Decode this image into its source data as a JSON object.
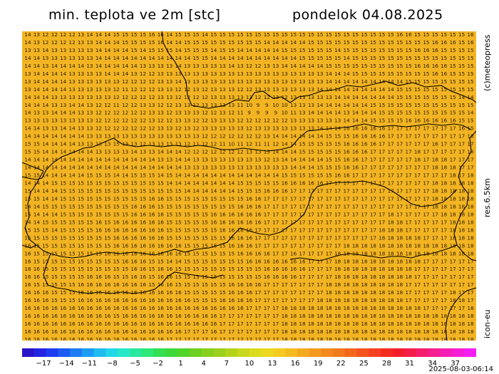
{
  "header": {
    "title": "min. teplota ve 2m [stc]",
    "date_label": "pondelok 04.08.2025"
  },
  "side_labels": {
    "credit": "(c)meteopress",
    "resolution": "res.6.5km",
    "model": "icon-eu"
  },
  "timestamp": "2025-08-03-06:14",
  "map": {
    "background_color": "#f2b422",
    "contour_color": "#000000",
    "value_color": "#2a1a00",
    "rows": [
      "14 13 12 12 12 12 13 14 14 14 15 15 15 15 16 16 14 15 15 15 14 15 15 15 15 15 15 15 15 15 15 15 15 15 15 15 15 15 15 15 15 15 16 16 15 15 15 15 15 15 16",
      "14 13 12 12 12 12 13 13 14 14 14 15 15 15 15 16 14 14 15 15 15 15 15 15 15 15 15 14 14 14 14 14 15 15 15 15 15 15 15 15 15 15 15 15 15 15 16 16 16 15 16",
      "13 13 14 13 13 13 13 13 14 14 14 14 15 14 15 15 15 14 15 15 15 14 15 15 14 14 14 14 14 15 15 15 15 15 15 14 15 15 15 15 15 15 15 15 16 16 16 15 15 15 15",
      "14 14 13 13 13 13 13 13 14 14 14 14 14 14 14 14 14 14 14 15 15 14 14 14 14 14 14 14 14 14 14 15 15 15 15 15 14 15 15 15 15 15 15 15 15 15 15 15 15 15 15",
      "14 14 13 14 14 14 14 13 14 14 14 14 14 13 13 13 13 14 13 13 13 13 13 14 13 12 12 13 13 14 14 14 14 14 15 15 15 15 15 15 15 15 15 15 16 16 16 16 15 15 15",
      "13 14 14 14 14 13 13 13 13 14 14 14 13 12 12 13 13 13 13 13 13 13 13 13 13 13 13 13 13 13 13 13 13 13 14 14 14 15 15 15 15 15 15 15 15 15 16 16 15 15 15",
      "13 14 14 14 14 13 13 13 13 13 13 12 12 12 12 13 13 14 13 13 13 13 13 13 13 13 13 13 13 13 13 13 13 13 14 14 14 14 14 14 14 14 14 15 15 15 15 15 15 15 15",
      "13 14 14 14 14 13 13 13 13 13 12 11 12 12 12 13 13 12 12 13 12 13 13 13 12 12 13 13 13 13 13 13 13 14 14 14 14 14 14 14 14 14 15 15 15 15 15 15 15 15 15",
      "14 14 14 13 13 13 13 13 13 13 12 12 12 12 12 13 13 12 12 12 12 13 13 13 13 13 12 12 13 12 13 13 13 13 13 14 14 14 14 14 14 14 15 15 15 15 15 15 15 14 14",
      "14 14 14 13 13 14 14 13 12 12 11 12 12 13 13 12 12 13 13 12 13 13 13 13 11 10 9 9 10 10 13 13 13 14 14 14 14 14 14 15 15 15 15 15 15 15 15 15 15 15 15",
      "14 13 13 14 14 14 13 13 12 12 12 12 12 12 13 13 12 13 13 13 12 12 13 12 11 9 9 9 9 10 11 13 14 14 14 14 13 14 14 14 15 15 15 15 15 15 15 15 15 15 14",
      "13 13 13 13 13 13 13 13 12 12 12 12 12 12 13 12 12 13 13 12 12 13 13 13 12 12 12 12 12 12 13 13 13 13 13 13 14 14 14 15 15 15 15 16 16 16 16 16 16 15 15",
      "14 14 13 13 14 14 13 13 12 12 12 12 12 12 12 13 13 12 13 12 13 13 13 13 13 12 13 13 13 13 13 13 13 14 14 14 16 16 16 16 16 17 17 17 17 17 17 17 17 16 15",
      "14 14 14 14 14 14 14 13 13 13 13 13 13 13 13 13 13 13 13 13 12 12 12 12 12 12 12 13 14 14 14 14 14 14 15 15 15 16 16 16 16 17 17 17 17 17 17 17 17 17 16",
      "15 15 14 14 14 14 13 13 13 13 15 13 13 12 13 13 13 13 12 11 12 12 11 10 11 12 11 11 12 14 14 15 15 15 15 15 16 16 16 16 17 17 17 17 17 17 16 17 17 17 17",
      "15 15 14 14 14 14 14 14 13 13 13 13 14 13 13 14 14 14 12 12 12 12 12 12 12 13 13 13 14 14 14 15 15 15 15 15 16 16 16 17 17 17 17 17 18 17 17 17 17 17 18",
      "14 14 14 14 14 14 14 14 14 14 14 14 14 14 14 13 13 14 14 13 13 13 13 13 13 13 13 12 13 14 14 14 14 14 15 15 16 16 17 17 17 17 17 17 18 17 18 18 17 17 17",
      "14 14 14 14 14 14 14 14 14 14 14 14 14 14 14 14 14 14 13 13 13 13 13 13 13 13 13 13 13 13 14 14 14 15 15 15 16 16 17 17 17 17 17 17 17 17 18 18 18 17 17",
      "15 15 14 14 14 14 14 15 15 15 14 14 15 15 15 14 15 14 14 14 14 14 14 14 14 14 14 14 14 15 15 15 15 15 15 16 16 17 17 17 17 17 17 17 17 17 17 17 18 17 18",
      "14 14 14 15 15 15 15 15 15 15 15 15 15 15 15 15 14 14 14 14 14 14 14 14 15 15 15 15 15 16 16 16 16 16 17 17 17 17 17 17 17 17 17 17 17 17 18 18 18 18 18",
      "15 14 14 14 15 15 15 15 15 15 15 15 15 15 15 15 15 15 14 14 14 14 14 14 15 15 15 16 16 16 17 17 17 17 17 17 17 17 17 17 17 17 17 17 17 17 18 18 18 18 18",
      "15 15 14 14 15 15 15 15 15 15 15 15 15 15 16 16 15 15 15 15 15 15 15 15 15 16 16 17 17 17 17 17 17 17 17 17 17 17 17 17 17 17 17 17 17 17 18 18 18 18 18",
      "14 14 15 15 15 15 15 15 15 15 15 15 16 16 16 15 15 15 15 15 15 15 15 15 16 16 16 17 17 17 17 17 17 17 17 17 17 17 17 17 17 17 17 17 17 17 18 18 18 18 18",
      "15 14 14 14 15 15 15 15 15 15 15 15 16 16 16 16 15 15 15 15 15 16 16 16 16 16 16 17 17 17 17 17 17 17 17 17 17 17 17 17 17 18 17 17 17 17 17 18 18 18 18",
      "14 14 15 15 15 15 15 15 16 15 16 16 16 16 16 16 15 15 15 15 15 16 16 16 16 16 16 17 17 17 17 17 17 17 17 17 17 17 17 17 17 18 18 17 17 17 17 17 18 18 18",
      "15 15 15 14 15 15 15 15 16 16 16 16 16 16 16 16 15 15 15 15 15 15 16 16 16 16 17 17 17 17 17 17 17 17 17 17 17 17 17 17 18 18 18 17 17 17 17 17 18 18 18",
      "15 15 15 15 15 15 15 15 15 15 16 16 16 16 16 16 15 15 15 15 15 15 15 16 16 16 17 17 17 17 17 17 17 17 17 17 17 17 17 17 18 18 18 18 18 17 17 17 18 18 18",
      "16 15 15 15 15 15 15 15 15 15 16 16 16 16 16 16 16 16 15 15 15 15 15 16 16 16 17 17 17 17 17 17 17 17 17 17 18 18 18 18 18 18 18 18 18 18 18 18 18 18 18",
      "16 15 15 15 15 15 15 15 15 16 16 16 16 16 16 16 16 16 15 15 15 15 15 15 16 16 16 16 17 17 16 17 17 17 17 18 18 18 18 18 18 18 18 18 18 18 18 18 18 18 18",
      "16 15 15 15 15 15 15 15 15 15 15 16 16 16 15 15 14 14 15 15 15 15 15 15 15 16 16 16 16 16 16 16 17 17 17 18 18 18 18 18 18 18 18 18 18 17 17 17 17 17 17",
      "16 16 15 15 15 15 15 15 15 15 15 15 16 16 15 16 16 15 15 15 15 15 15 15 15 15 15 16 16 16 16 16 17 17 17 18 18 18 18 18 18 18 18 18 17 17 17 17 17 17 17",
      "16 16 15 15 15 15 15 16 16 16 15 15 16 16 15 16 16 15 15 15 15 15 15 15 15 15 15 16 16 16 16 17 17 17 17 18 18 18 18 18 18 18 18 18 17 17 17 17 17 17 17",
      "16 15 15 15 15 15 16 16 16 16 16 16 16 16 15 16 16 15 15 15 15 15 15 16 16 16 16 17 17 17 17 17 17 17 18 18 18 18 18 18 18 18 18 17 17 17 17 17 17 17 17",
      "16 16 16 15 15 15 16 16 16 16 16 16 16 16 16 16 16 16 15 15 15 15 15 16 16 16 17 17 17 17 17 17 17 17 18 18 18 18 18 18 18 18 18 17 17 17 17 17 18 17 17",
      "16 16 16 15 15 15 16 16 16 16 16 16 16 16 16 16 16 16 16 15 15 15 16 16 16 16 17 17 17 17 17 17 17 18 18 18 18 18 18 18 18 18 18 17 17 17 17 17 18 18 17",
      "16 16 16 16 16 16 16 16 16 16 16 16 16 16 16 16 16 16 16 16 16 16 16 16 16 17 17 17 17 18 18 18 18 18 18 18 18 18 18 18 18 18 18 18 18 17 17 17 17 17 18",
      "16 16 16 16 16 16 16 16 16 16 15 16 16 16 16 16 16 16 16 16 16 16 17 17 17 17 17 17 17 18 18 18 18 18 18 18 18 18 18 18 18 18 18 18 18 18 18 18 18 18 18",
      "16 16 16 16 16 16 16 16 16 16 16 16 16 16 16 16 16 16 16 16 16 16 17 17 17 17 17 17 17 18 18 18 18 18 18 18 18 18 18 18 18 18 18 18 18 18 18 18 18 18 18",
      "16 16 16 16 16 16 16 16 16 16 16 16 16 16 16 16 16 16 17 17 17 16 17 17 17 17 17 17 17 18 18 18 18 18 18 18 18 18 18 18 18 18 18 18 18 18 18 18 18 18 18",
      "16 16 16 16 16 16 16 16 16 16 16 16 16 16 16 16 17 17 17 17 17 17 17 17 17 17 17 17 17 18 18 18 18 18 18 18 18 18 18 18 18 18 18 18 18 18 18 18 18 18 18"
    ]
  },
  "legend": {
    "ticks": [
      "−17",
      "−14",
      "−11",
      "−8",
      "−5",
      "−2",
      "1",
      "4",
      "7",
      "10",
      "13",
      "16",
      "19",
      "22",
      "25",
      "28",
      "31",
      "34",
      "37"
    ],
    "colors": [
      "#2a14c8",
      "#2424e0",
      "#1e3cf0",
      "#1a5cf4",
      "#1c7cf4",
      "#1c9cf4",
      "#20bcf0",
      "#22d8e8",
      "#26e8c8",
      "#2ae8a0",
      "#2ee878",
      "#34e052",
      "#3ed83a",
      "#52d42a",
      "#6cd020",
      "#86d01c",
      "#9cd01c",
      "#b4d41c",
      "#c8d81c",
      "#dcdc1e",
      "#ecd81e",
      "#f4cc1e",
      "#f4bc1e",
      "#f4aa1e",
      "#f49a1e",
      "#f48a1e",
      "#f47a1e",
      "#f4681e",
      "#f4541e",
      "#f4401e",
      "#f42c1e",
      "#f41e2a",
      "#f41e4a",
      "#f41e6c",
      "#f41e90",
      "#f41eb4",
      "#f41ed4",
      "#f41ef0"
    ]
  }
}
